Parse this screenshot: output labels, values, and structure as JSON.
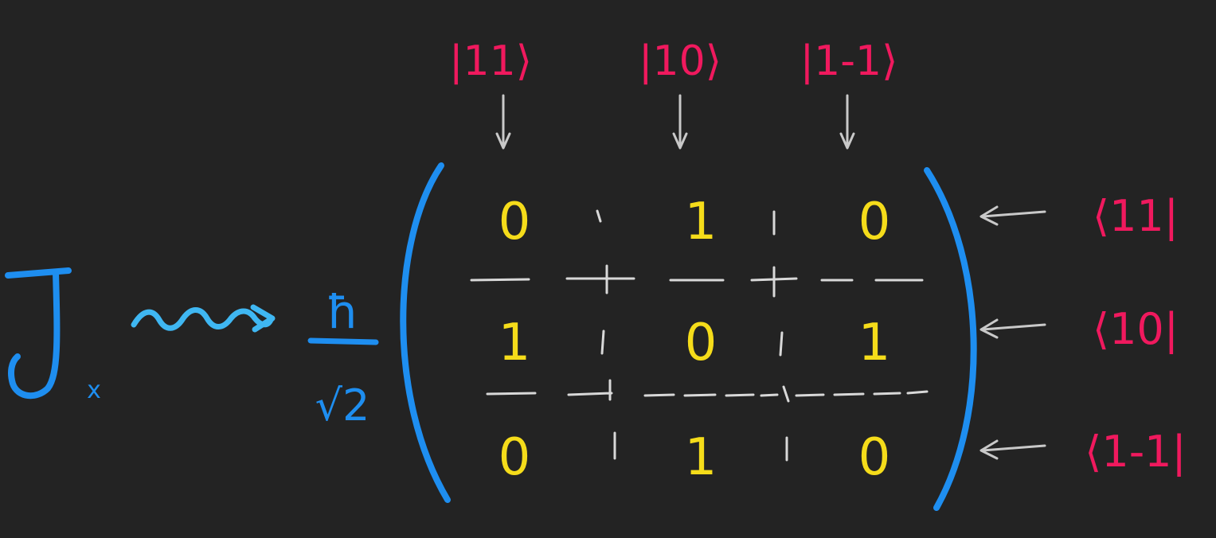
{
  "colors": {
    "background": "#232323",
    "operator": "#1e8ef0",
    "squiggle": "#3fb7f2",
    "prefactor": "#1e8ef0",
    "bracket": "#1e8ef0",
    "entries": "#f5dc1a",
    "labels": "#f0195e",
    "arrows": "#c9c9c9",
    "gridlines": "#d8d8d8"
  },
  "operator": {
    "symbol": "J",
    "subscript": "x"
  },
  "prefactor": {
    "numerator": "ħ",
    "denominator": "√2"
  },
  "column_labels": [
    "|11⟩",
    "|10⟩",
    "|1-1⟩"
  ],
  "row_labels": [
    "⟨11|",
    "⟨10|",
    "⟨1-1|"
  ],
  "matrix": [
    [
      "0",
      "1",
      "0"
    ],
    [
      "1",
      "0",
      "1"
    ],
    [
      "0",
      "1",
      "0"
    ]
  ],
  "icons": {
    "column_arrow": "arrow-down-icon",
    "row_arrow": "arrow-left-icon",
    "maps_to": "squiggly-arrow-icon"
  }
}
